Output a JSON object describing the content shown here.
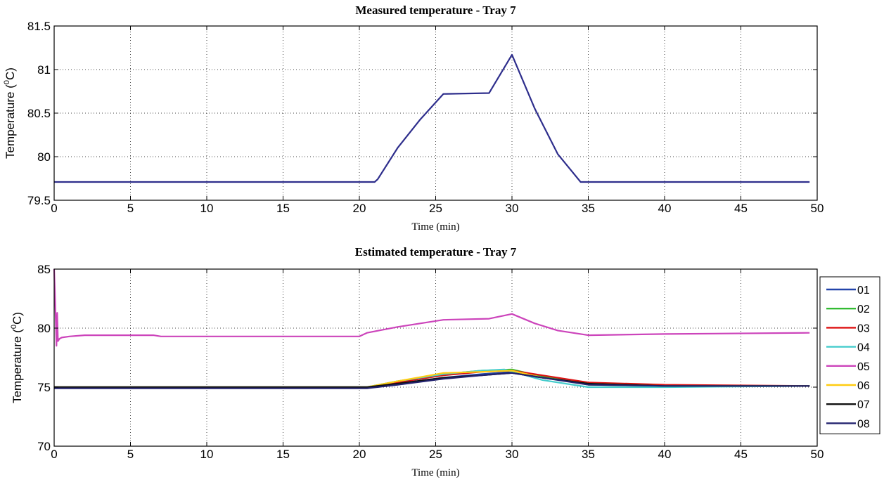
{
  "chart_data": [
    {
      "type": "line",
      "title": "Measured temperature -  Tray 7",
      "xlabel": "Time (min)",
      "ylabel": "Temperature (",
      "ylabel_sup": "0",
      "ylabel_end": "C)",
      "xlim": [
        0,
        50
      ],
      "ylim": [
        79.5,
        81.5
      ],
      "xticks": [
        0,
        5,
        10,
        15,
        20,
        25,
        30,
        35,
        40,
        45,
        50
      ],
      "yticks": [
        79.5,
        80,
        80.5,
        81,
        81.5
      ],
      "yticklabels": [
        "79.5",
        "80",
        "80.5",
        "81",
        "81.5"
      ],
      "grid": true,
      "series": [
        {
          "color": "#2e2e8c",
          "x": [
            0,
            21,
            21.2,
            22.5,
            24,
            25.5,
            28.5,
            30,
            31.5,
            33,
            34.5,
            49.5
          ],
          "y": [
            79.71,
            79.71,
            79.74,
            80.1,
            80.43,
            80.72,
            80.73,
            81.17,
            80.55,
            80.03,
            79.71,
            79.71
          ]
        }
      ]
    },
    {
      "type": "line",
      "title": "Estimated temperature -  Tray 7",
      "xlabel": "Time (min)",
      "ylabel": "Temperature (",
      "ylabel_sup": "0",
      "ylabel_end": "C)",
      "xlim": [
        0,
        50
      ],
      "ylim": [
        70,
        85
      ],
      "xticks": [
        0,
        5,
        10,
        15,
        20,
        25,
        30,
        35,
        40,
        45,
        50
      ],
      "yticks": [
        70,
        75,
        80,
        85
      ],
      "yticklabels": [
        "70",
        "75",
        "80",
        "85"
      ],
      "grid": true,
      "legend_position": "right",
      "series": [
        {
          "name": "01",
          "color": "#2244aa",
          "x": [
            0,
            0.3,
            20.5,
            22.5,
            25.5,
            28,
            30,
            32,
            35,
            40,
            49.5
          ],
          "y": [
            75.0,
            75.0,
            75.0,
            75.3,
            75.8,
            76.1,
            76.3,
            75.9,
            75.3,
            75.1,
            75.1
          ]
        },
        {
          "name": "02",
          "color": "#33bb33",
          "x": [
            0,
            0.3,
            20.5,
            22.5,
            25.5,
            28,
            30,
            32,
            35,
            40,
            49.5
          ],
          "y": [
            75.0,
            75.0,
            75.0,
            75.5,
            76.1,
            76.4,
            76.5,
            75.9,
            75.2,
            75.1,
            75.1
          ]
        },
        {
          "name": "03",
          "color": "#dd1111",
          "x": [
            0,
            0.3,
            20.5,
            22.5,
            25.5,
            28,
            30,
            32,
            35,
            40,
            49.5
          ],
          "y": [
            75.0,
            75.0,
            75.0,
            75.4,
            76.0,
            76.3,
            76.4,
            76.0,
            75.4,
            75.2,
            75.1
          ]
        },
        {
          "name": "04",
          "color": "#44cccc",
          "x": [
            0,
            0.3,
            20.5,
            22.5,
            25.5,
            28,
            29.5,
            32,
            35,
            40,
            49.5
          ],
          "y": [
            75.0,
            75.0,
            75.0,
            75.5,
            76.1,
            76.4,
            76.5,
            75.6,
            75.0,
            75.0,
            75.1
          ]
        },
        {
          "name": "05",
          "color": "#cc44bb",
          "x": [
            0,
            0.05,
            0.15,
            0.2,
            0.25,
            0.35,
            0.5,
            1,
            2,
            4,
            6.5,
            7,
            20,
            20.5,
            22.5,
            25.5,
            28.5,
            30,
            31.5,
            33,
            35,
            40,
            49.5
          ],
          "y": [
            85.0,
            83.0,
            78.5,
            81.3,
            78.9,
            79.1,
            79.2,
            79.3,
            79.4,
            79.4,
            79.4,
            79.3,
            79.3,
            79.6,
            80.1,
            80.7,
            80.8,
            81.2,
            80.4,
            79.8,
            79.4,
            79.5,
            79.6
          ]
        },
        {
          "name": "06",
          "color": "#ffcc11",
          "x": [
            0,
            0.3,
            20.5,
            22.5,
            25.5,
            28,
            30,
            32,
            35,
            40,
            49.5
          ],
          "y": [
            75.0,
            75.0,
            75.0,
            75.5,
            76.2,
            76.3,
            76.4,
            75.8,
            75.3,
            75.1,
            75.1
          ]
        },
        {
          "name": "07",
          "color": "#111111",
          "x": [
            0,
            0.3,
            20.5,
            22.5,
            25.5,
            28,
            30,
            32,
            35,
            40,
            49.5
          ],
          "y": [
            75.0,
            75.0,
            75.0,
            75.3,
            75.8,
            76.0,
            76.2,
            75.8,
            75.3,
            75.1,
            75.1
          ]
        },
        {
          "name": "08",
          "color": "#22226e",
          "x": [
            0,
            0.3,
            20.5,
            22.5,
            25.5,
            28,
            30,
            32,
            35,
            40,
            49.5
          ],
          "y": [
            74.9,
            74.9,
            74.9,
            75.2,
            75.7,
            76.0,
            76.2,
            75.8,
            75.2,
            75.1,
            75.1
          ]
        }
      ]
    }
  ]
}
